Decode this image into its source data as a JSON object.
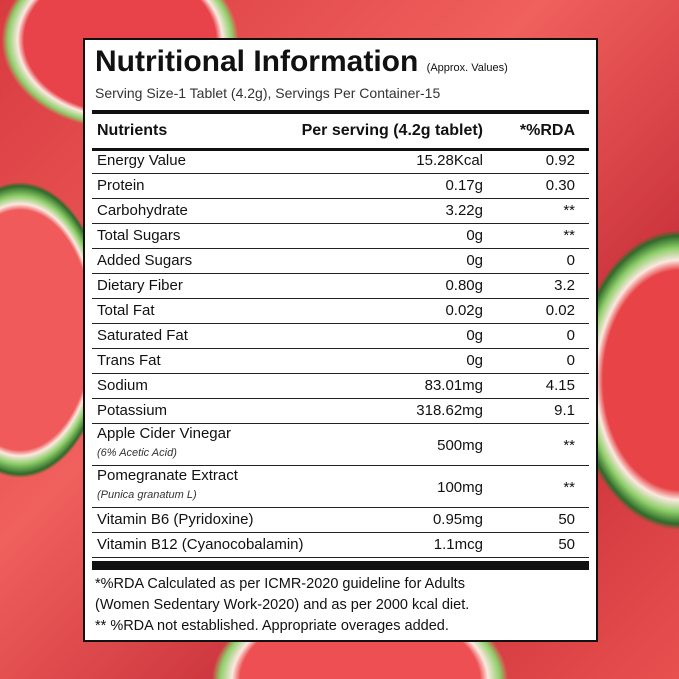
{
  "title": "Nutritional Information",
  "approx": "(Approx. Values)",
  "serving": "Serving Size-1 Tablet (4.2g), Servings Per Container-15",
  "headers": {
    "nutrient": "Nutrients",
    "per_serving": "Per serving (4.2g tablet)",
    "rda": "*%RDA"
  },
  "rows": [
    {
      "name": "Energy Value",
      "value": "15.28Kcal",
      "rda": "0.92"
    },
    {
      "name": "Protein",
      "value": "0.17g",
      "rda": "0.30"
    },
    {
      "name": "Carbohydrate",
      "value": "3.22g",
      "rda": "**"
    },
    {
      "name": "Total Sugars",
      "value": "0g",
      "rda": "**"
    },
    {
      "name": "Added Sugars",
      "value": "0g",
      "rda": "0"
    },
    {
      "name": "Dietary Fiber",
      "value": "0.80g",
      "rda": "3.2"
    },
    {
      "name": "Total Fat",
      "value": "0.02g",
      "rda": "0.02"
    },
    {
      "name": "Saturated Fat",
      "value": "0g",
      "rda": "0"
    },
    {
      "name": "Trans Fat",
      "value": "0g",
      "rda": "0"
    },
    {
      "name": "Sodium",
      "value": "83.01mg",
      "rda": "4.15"
    },
    {
      "name": "Potassium",
      "value": "318.62mg",
      "rda": "9.1"
    },
    {
      "name": "Apple Cider Vinegar",
      "note": "(6% Acetic Acid)",
      "value": "500mg",
      "rda": "**"
    },
    {
      "name": "Pomegranate Extract",
      "note": "(Punica granatum L)",
      "value": "100mg",
      "rda": "**"
    },
    {
      "name": "Vitamin B6 (Pyridoxine)",
      "value": "0.95mg",
      "rda": "50"
    },
    {
      "name": "Vitamin B12 (Cyanocobalamin)",
      "value": "1.1mcg",
      "rda": "50"
    }
  ],
  "footer": [
    "*%RDA Calculated as per ICMR-2020 guideline for Adults",
    "(Women Sedentary Work-2020) and as per 2000 kcal diet.",
    "** %RDA not established. Appropriate overages added."
  ]
}
